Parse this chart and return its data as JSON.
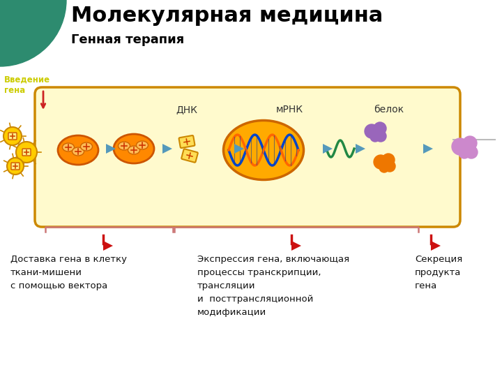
{
  "title": "Молекулярная медицина",
  "subtitle": "Генная терапия",
  "intro_label": "Введение\nгена",
  "label_dnk": "ДНК",
  "label_mrna": "мРНК",
  "label_protein": "белок",
  "text1": "Доставка гена в клетку\nткани-мишени\nс помощью вектора",
  "text2": "Экспрессия гена, включающая\nпроцессы транскрипции,\nтрансляции\nи  посттрансляционной\nмодификации",
  "text3": "Секреция\nпродукта\nгена",
  "bg_color": "#ffffff",
  "cell_fill": "#fffacd",
  "cell_edge": "#cc8800",
  "teal_color": "#2d8b6f",
  "intro_text_color": "#cccc00",
  "title_color": "#000000",
  "arrow_blue": "#5599bb",
  "arrow_red": "#cc2222",
  "bracket_color": "#cc7777",
  "nucleus_fill": "#ffaa00",
  "nucleus_edge": "#cc6600",
  "virus_color": "#ffcc00",
  "virus_edge": "#cc8800",
  "mito_color": "#ff8800",
  "mito_edge": "#cc5500",
  "dna_color1": "#0044cc",
  "dna_color2": "#ff6600",
  "mrna_color": "#228844",
  "protein_purple": "#9966bb",
  "protein_orange": "#ee7700",
  "red_flag": "#cc1111"
}
